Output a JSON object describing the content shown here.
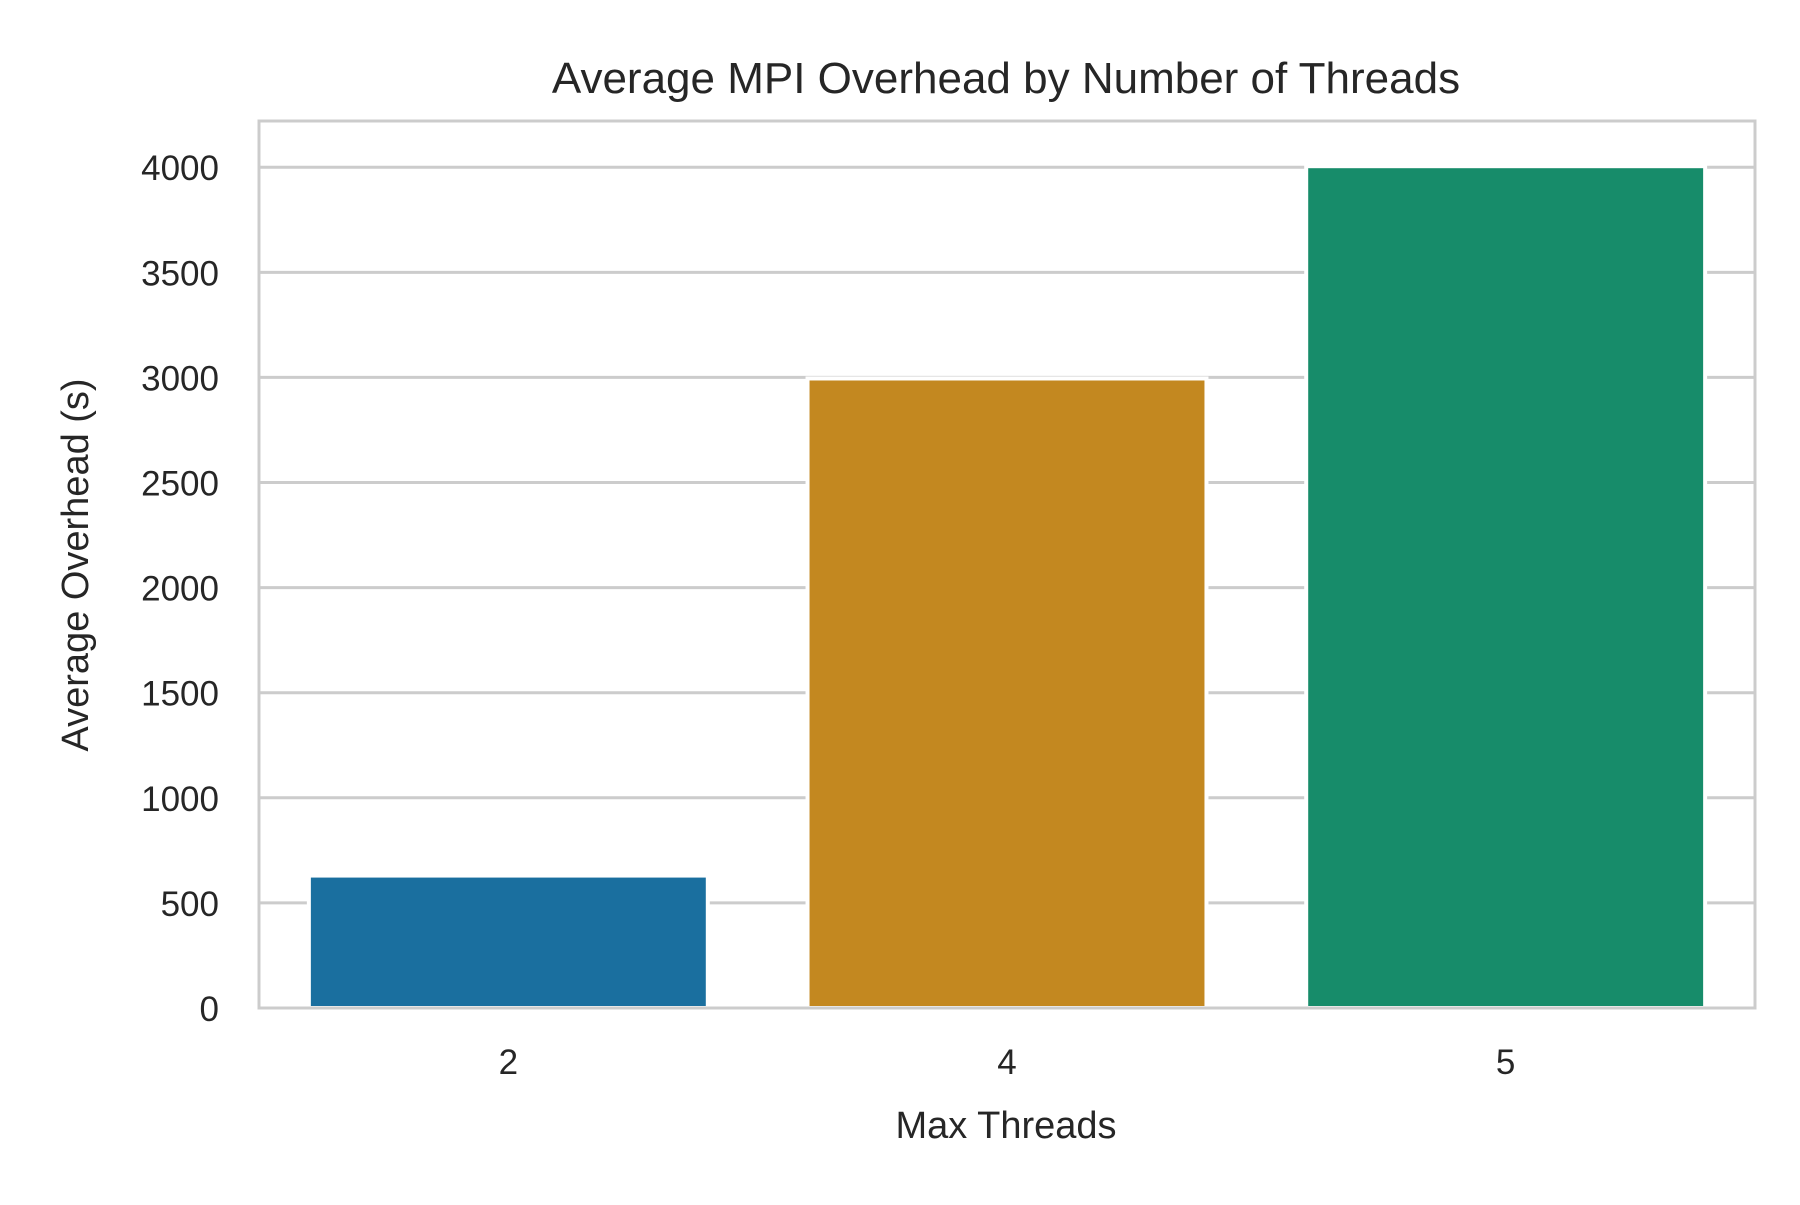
{
  "chart_data": {
    "type": "bar",
    "title": "Average MPI Overhead by Number of Threads",
    "xlabel": "Max Threads",
    "ylabel": "Average Overhead (s)",
    "categories": [
      "2",
      "4",
      "5"
    ],
    "values": [
      630,
      2995,
      4005
    ],
    "colors": [
      "#1a6f9f",
      "#c38820",
      "#178c6a"
    ],
    "ylim": [
      0,
      4220
    ],
    "yticks": [
      0,
      500,
      1000,
      1500,
      2000,
      2500,
      3000,
      3500,
      4000
    ],
    "grid": true,
    "legend": "none"
  }
}
